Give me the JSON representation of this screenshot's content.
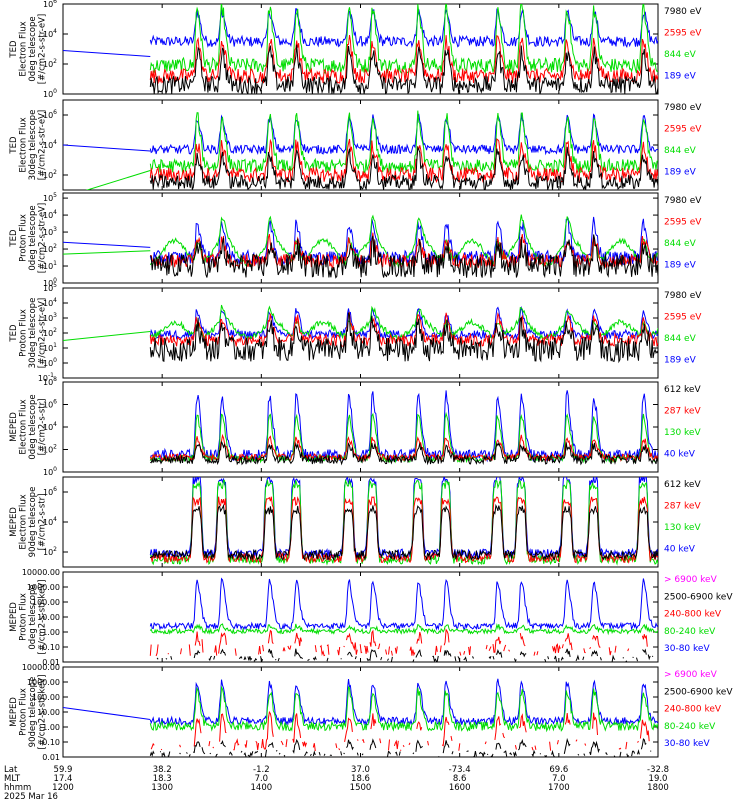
{
  "chart_data": [
    {
      "type": "line",
      "ylabel": [
        "TED",
        "Electron Flux",
        "0deg telescope",
        "[#/cm2-s-str-eV]"
      ],
      "yscale": "log",
      "yticks": [
        "10^6",
        "10^4",
        "10^2",
        "10^0"
      ],
      "ylim_exp": [
        0,
        6
      ],
      "legend": [
        {
          "label": "7980 eV",
          "color": "#000000"
        },
        {
          "label": "2595 eV",
          "color": "#ff0000"
        },
        {
          "label": "844 eV",
          "color": "#00dd00"
        },
        {
          "label": "189 eV",
          "color": "#0000ff"
        }
      ],
      "series": [
        {
          "name": "189 eV",
          "color": "#0000ff",
          "baseline": 3.5,
          "peak": 5.5,
          "noise": 0.35,
          "pre": [
            2.9,
            2.5
          ]
        },
        {
          "name": "844 eV",
          "color": "#00dd00",
          "baseline": 1.9,
          "peak": 5.8,
          "noise": 0.5
        },
        {
          "name": "2595 eV",
          "color": "#ff0000",
          "baseline": 1.2,
          "peak": 3.6,
          "noise": 0.5
        },
        {
          "name": "7980 eV",
          "color": "#000000",
          "baseline": 0.6,
          "peak": 2.8,
          "noise": 0.6
        }
      ]
    },
    {
      "type": "line",
      "ylabel": [
        "TED",
        "Electron Flux",
        "30deg telescope",
        "[#/cm2-s-str-eV]"
      ],
      "yscale": "log",
      "yticks": [
        "10^6",
        "10^4",
        "10^2"
      ],
      "ylim_exp": [
        1,
        7
      ],
      "legend": [
        {
          "label": "7980 eV",
          "color": "#000000"
        },
        {
          "label": "2595 eV",
          "color": "#ff0000"
        },
        {
          "label": "844 eV",
          "color": "#00dd00"
        },
        {
          "label": "189 eV",
          "color": "#0000ff"
        }
      ],
      "series": [
        {
          "name": "189 eV",
          "color": "#0000ff",
          "baseline": 3.7,
          "peak": 5.8,
          "noise": 0.3,
          "pre": [
            4.0,
            3.6
          ]
        },
        {
          "name": "844 eV",
          "color": "#00dd00",
          "baseline": 2.6,
          "peak": 5.9,
          "noise": 0.45,
          "pre": [
            0.5,
            2.3
          ]
        },
        {
          "name": "2595 eV",
          "color": "#ff0000",
          "baseline": 2.0,
          "peak": 4.0,
          "noise": 0.5
        },
        {
          "name": "7980 eV",
          "color": "#000000",
          "baseline": 1.5,
          "peak": 3.4,
          "noise": 0.5
        }
      ]
    },
    {
      "type": "line",
      "ylabel": [
        "TED",
        "Proton Flux",
        "0deg telescope",
        "[#/cm2-s-str-eV]"
      ],
      "yscale": "log",
      "yticks": [
        "10^5",
        "10^4",
        "10^3",
        "10^2",
        "10^1",
        "10^0"
      ],
      "ylim_exp": [
        0,
        5.3
      ],
      "legend": [
        {
          "label": "7980 eV",
          "color": "#000000"
        },
        {
          "label": "2595 eV",
          "color": "#ff0000"
        },
        {
          "label": "844 eV",
          "color": "#00dd00"
        },
        {
          "label": "189 eV",
          "color": "#0000ff"
        }
      ],
      "series": [
        {
          "name": "189 eV",
          "color": "#0000ff",
          "baseline": 1.5,
          "peak": 3.6,
          "noise": 0.4,
          "pre": [
            2.4,
            2.1
          ]
        },
        {
          "name": "844 eV",
          "color": "#00dd00",
          "baseline": 1.8,
          "peak": 3.2,
          "noise": 0.15,
          "wave": 0.7,
          "pre": [
            1.7,
            1.9
          ]
        },
        {
          "name": "2595 eV",
          "color": "#ff0000",
          "baseline": 1.3,
          "peak": 2.6,
          "noise": 0.4
        },
        {
          "name": "7980 eV",
          "color": "#000000",
          "baseline": 1.0,
          "peak": 2.2,
          "noise": 0.7
        }
      ]
    },
    {
      "type": "line",
      "ylabel": [
        "TED",
        "Proton Flux",
        "30deg telescope",
        "[#/cm2-s-str-eV]"
      ],
      "yscale": "log",
      "yticks": [
        "10^5",
        "10^4",
        "10^3",
        "10^2",
        "10^1",
        "10^0",
        "10^-1"
      ],
      "ylim_exp": [
        -1,
        5
      ],
      "legend": [
        {
          "label": "7980 eV",
          "color": "#000000"
        },
        {
          "label": "2595 eV",
          "color": "#ff0000"
        },
        {
          "label": "844 eV",
          "color": "#00dd00"
        },
        {
          "label": "189 eV",
          "color": "#0000ff"
        }
      ],
      "series": [
        {
          "name": "189 eV",
          "color": "#0000ff",
          "baseline": 1.9,
          "peak": 3.5,
          "noise": 0.3
        },
        {
          "name": "844 eV",
          "color": "#00dd00",
          "baseline": 2.2,
          "peak": 3.2,
          "noise": 0.2,
          "wave": 0.5,
          "pre": [
            1.5,
            2.1
          ]
        },
        {
          "name": "2595 eV",
          "color": "#ff0000",
          "baseline": 1.5,
          "peak": 3.0,
          "noise": 0.4
        },
        {
          "name": "7980 eV",
          "color": "#000000",
          "baseline": 0.9,
          "peak": 2.6,
          "noise": 0.8
        }
      ]
    },
    {
      "type": "line",
      "ylabel": [
        "MEPED",
        "Electron Flux",
        "0deg telescope",
        "[#/cm2-s-str]"
      ],
      "yscale": "log",
      "yticks": [
        "10^8",
        "10^6",
        "10^4",
        "10^2",
        "10^0"
      ],
      "ylim_exp": [
        0,
        8
      ],
      "legend": [
        {
          "label": "612 keV",
          "color": "#000000"
        },
        {
          "label": "287 keV",
          "color": "#ff0000"
        },
        {
          "label": "130 keV",
          "color": "#00dd00"
        },
        {
          "label": "40 keV",
          "color": "#0000ff"
        }
      ],
      "series": [
        {
          "name": "40 keV",
          "color": "#0000ff",
          "baseline": 1.5,
          "peak": 6.8,
          "noise": 0.5
        },
        {
          "name": "130 keV",
          "color": "#00dd00",
          "baseline": 1.2,
          "peak": 5.0,
          "noise": 0.3
        },
        {
          "name": "287 keV",
          "color": "#ff0000",
          "baseline": 1.3,
          "peak": 3.0,
          "noise": 0.3
        },
        {
          "name": "612 keV",
          "color": "#000000",
          "baseline": 1.1,
          "peak": 2.4,
          "noise": 0.4
        }
      ]
    },
    {
      "type": "line",
      "ylabel": [
        "MEPED",
        "Electron Flux",
        "90deg telescope",
        "[#/cm2-s-str]"
      ],
      "yscale": "log",
      "yticks": [
        "10^6",
        "10^4",
        "10^2"
      ],
      "ylim_exp": [
        1,
        7
      ],
      "legend": [
        {
          "label": "612 keV",
          "color": "#000000"
        },
        {
          "label": "287 keV",
          "color": "#ff0000"
        },
        {
          "label": "130 keV",
          "color": "#00dd00"
        },
        {
          "label": "40 keV",
          "color": "#0000ff"
        }
      ],
      "series": [
        {
          "name": "40 keV",
          "color": "#0000ff",
          "baseline": 1.9,
          "peak": 6.8,
          "noise": 0.3,
          "belt": 1
        },
        {
          "name": "130 keV",
          "color": "#00dd00",
          "baseline": 1.5,
          "peak": 6.5,
          "noise": 0.3,
          "belt": 1
        },
        {
          "name": "287 keV",
          "color": "#ff0000",
          "baseline": 1.6,
          "peak": 5.4,
          "noise": 0.3,
          "belt": 1
        },
        {
          "name": "612 keV",
          "color": "#000000",
          "baseline": 1.8,
          "peak": 4.8,
          "noise": 0.3,
          "belt": 1
        }
      ]
    },
    {
      "type": "line",
      "ylabel": [
        "MEPED",
        "Proton Flux",
        "0deg telescope",
        "[#/cm2-s-str-keV]"
      ],
      "yscale": "log",
      "yticks": [
        "10000.00",
        "1000.00",
        "100.00",
        "10.00",
        "1.00",
        "0.10",
        "0.01"
      ],
      "ylim_exp": [
        -2,
        4
      ],
      "legend": [
        {
          "label": "> 6900 keV",
          "color": "#ff00ff"
        },
        {
          "label": "2500-6900 keV",
          "color": "#000000"
        },
        {
          "label": "240-800 keV",
          "color": "#ff0000"
        },
        {
          "label": "80-240 keV",
          "color": "#00dd00"
        },
        {
          "label": "30-80 keV",
          "color": "#0000ff"
        }
      ],
      "series": [
        {
          "name": "30-80 keV",
          "color": "#0000ff",
          "baseline": 0.4,
          "peak": 3.4,
          "noise": 0.2
        },
        {
          "name": "80-240 keV",
          "color": "#00dd00",
          "baseline": 0.05,
          "peak": 0.4,
          "noise": 0.15
        },
        {
          "name": "240-800 keV",
          "color": "#ff0000",
          "baseline": -1.2,
          "peak": -0.2,
          "noise": 0.4,
          "sparse": 1
        },
        {
          "name": "2500-6900 keV",
          "color": "#000000",
          "baseline": -1.8,
          "peak": -1.3,
          "noise": 0.2,
          "sparse": 1
        }
      ]
    },
    {
      "type": "line",
      "ylabel": [
        "MEPED",
        "Proton Flux",
        "90deg telescope",
        "[#/cm2-s-str-keV]"
      ],
      "yscale": "log",
      "yticks": [
        "10000.00",
        "1000.00",
        "100.00",
        "10.00",
        "1.00",
        "0.10",
        "0.01"
      ],
      "ylim_exp": [
        -2,
        4
      ],
      "legend": [
        {
          "label": "> 6900 keV",
          "color": "#ff00ff"
        },
        {
          "label": "2500-6900 keV",
          "color": "#000000"
        },
        {
          "label": "240-800 keV",
          "color": "#ff0000"
        },
        {
          "label": "80-240 keV",
          "color": "#00dd00"
        },
        {
          "label": "30-80 keV",
          "color": "#0000ff"
        }
      ],
      "series": [
        {
          "name": "30-80 keV",
          "color": "#0000ff",
          "baseline": 0.4,
          "peak": 3.0,
          "noise": 0.25,
          "pre": [
            1.3,
            0.5
          ]
        },
        {
          "name": "80-240 keV",
          "color": "#00dd00",
          "baseline": 0.05,
          "peak": 2.4,
          "noise": 0.3
        },
        {
          "name": "240-800 keV",
          "color": "#ff0000",
          "baseline": -1.2,
          "peak": 0.6,
          "noise": 0.4,
          "sparse": 1
        },
        {
          "name": "2500-6900 keV",
          "color": "#000000",
          "baseline": -1.8,
          "peak": -1.0,
          "noise": 0.2,
          "sparse": 1
        }
      ]
    }
  ],
  "x_axis": {
    "row_labels": [
      "Lat",
      "MLT",
      "hhmm",
      "2025 Mar 16"
    ],
    "xlim_hours": [
      12.0,
      18.0
    ],
    "data_start_hour": 12.88,
    "passes": [
      13.35,
      13.6,
      14.08,
      14.35,
      14.88,
      15.12,
      15.58,
      15.86,
      16.38,
      16.62,
      17.08,
      17.35,
      17.85
    ],
    "ticks": [
      {
        "hour": 12.0,
        "lat": "59.9",
        "mlt": "17.4",
        "hhmm": "1200"
      },
      {
        "hour": 13.0,
        "lat": "38.2",
        "mlt": "18.3",
        "hhmm": "1300"
      },
      {
        "hour": 14.0,
        "lat": "-1.2",
        "mlt": "7.0",
        "hhmm": "1400"
      },
      {
        "hour": 15.0,
        "lat": "37.0",
        "mlt": "18.6",
        "hhmm": "1500"
      },
      {
        "hour": 16.0,
        "lat": "-73.4",
        "mlt": "8.6",
        "hhmm": "1600"
      },
      {
        "hour": 17.0,
        "lat": "69.6",
        "mlt": "7.0",
        "hhmm": "1700"
      },
      {
        "hour": 18.0,
        "lat": "-32.8",
        "mlt": "19.0",
        "hhmm": "1800"
      }
    ]
  }
}
